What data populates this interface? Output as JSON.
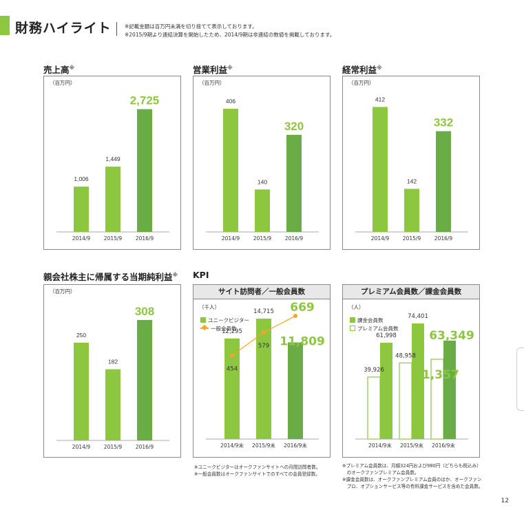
{
  "header": {
    "title": "財務ハイライト",
    "note1": "※記載金額は百万円未満を切り捨てて表示しております。",
    "note2": "※2015/9期より連結決算を開始したため、2014/9期は非連結の数値を掲載しております。"
  },
  "colors": {
    "light_bar": "#8dc63f",
    "dark_bar": "#6aac45",
    "highlight_value": "#8dc63f",
    "line": "#f5a623"
  },
  "sections": {
    "sales": {
      "title": "売上高",
      "mark": "※"
    },
    "operating": {
      "title": "営業利益",
      "mark": "※"
    },
    "ordinary": {
      "title": "経常利益",
      "mark": "※"
    },
    "net": {
      "title": "親会社株主に帰属する当期純利益",
      "mark": "※"
    },
    "kpi": {
      "title": "KPI"
    }
  },
  "chart_data": [
    {
      "id": "sales",
      "type": "bar",
      "unit_label": "（百万円）",
      "categories": [
        "2014/9",
        "2015/9",
        "2016/9"
      ],
      "values": [
        1006,
        1449,
        2725
      ],
      "labels": [
        "1,006",
        "1,449",
        "2,725"
      ],
      "ylim": [
        0,
        3300
      ]
    },
    {
      "id": "operating",
      "type": "bar",
      "unit_label": "（百万円）",
      "categories": [
        "2014/9",
        "2015/9",
        "2016/9"
      ],
      "values": [
        406,
        140,
        320
      ],
      "labels": [
        "406",
        "140",
        "320"
      ],
      "ylim": [
        0,
        490
      ]
    },
    {
      "id": "ordinary",
      "type": "bar",
      "unit_label": "（百万円）",
      "categories": [
        "2014/9",
        "2015/9",
        "2016/9"
      ],
      "values": [
        412,
        142,
        332
      ],
      "labels": [
        "412",
        "142",
        "332"
      ],
      "ylim": [
        0,
        490
      ]
    },
    {
      "id": "net",
      "type": "bar",
      "unit_label": "（百万円）",
      "categories": [
        "2014/9",
        "2015/9",
        "2016/9"
      ],
      "values": [
        250,
        182,
        308
      ],
      "labels": [
        "250",
        "182",
        "308"
      ],
      "ylim": [
        0,
        380
      ]
    },
    {
      "id": "visitors",
      "type": "bar+line",
      "header": "サイト訪問者／一般会員数",
      "unit_label": "（千人）",
      "categories": [
        "2014/9末",
        "2015/9末",
        "2016/9末"
      ],
      "series": [
        {
          "name": "ユニークビジター",
          "type": "bar",
          "values": [
            12295,
            14715,
            11809
          ],
          "labels": [
            "12,295",
            "14,715",
            "11,809"
          ]
        },
        {
          "name": "一般会員数",
          "type": "line",
          "values": [
            454,
            579,
            669
          ],
          "labels": [
            "454",
            "579",
            "669"
          ]
        }
      ],
      "bar_ylim": [
        0,
        18000
      ],
      "line_ylim": [
        0,
        800
      ]
    },
    {
      "id": "premium",
      "type": "grouped-bar",
      "header": "プレミアム会員数／課金会員数",
      "unit_label": "（人）",
      "categories": [
        "2014/9末",
        "2015/9末",
        "2016/9末"
      ],
      "series": [
        {
          "name": "課金会員数",
          "values": [
            61998,
            74401,
            63349
          ],
          "labels": [
            "61,998",
            "74,401",
            "63,349"
          ]
        },
        {
          "name": "プレミアム会員数",
          "values": [
            39926,
            48958,
            51357
          ],
          "labels": [
            "39,926",
            "48,958",
            "51,357"
          ]
        }
      ],
      "ylim": [
        0,
        93000
      ]
    }
  ],
  "footnotes": {
    "visitors": [
      "※ユニークビジターはオークファンサイトへの月間訪問者数。",
      "※一般会員数はオークファンサイトでのすべての会員登録数。"
    ],
    "premium": [
      "※プレミアム会員数は、月額324円および980円（どちらも税込み）",
      "　のオークファンプレミアム会員数。",
      "※課金会員数は、オークファンプレミアム会員のほか、オークファン",
      "　プロ、オプションサービス等の有料課金サービスを含めた会員数。"
    ]
  },
  "page_number": "12"
}
